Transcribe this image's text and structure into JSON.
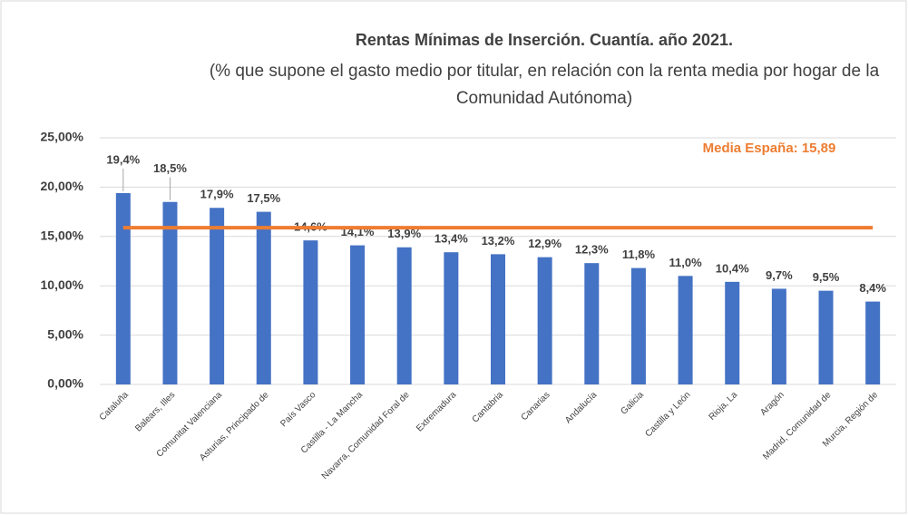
{
  "chart_data": {
    "type": "bar",
    "title": "Rentas Mínimas de Inserción. Cuantía. año 2021.",
    "subtitle": "(% que supone el gasto medio por titular, en relación con la renta media por hogar de la Comunidad Autónoma)",
    "categories": [
      "Cataluña",
      "Balears, Illes",
      "Comunitat Valenciana",
      "Asturias, Principado de",
      "País Vasco",
      "Castilla - La Mancha",
      "Navarra, Comunidad Foral de",
      "Extremadura",
      "Cantabria",
      "Canarias",
      "Andalucía",
      "Galicia",
      "Castilla y León",
      "Rioja, La",
      "Aragón",
      "Madrid, Comunidad de",
      "Murcia, Región de"
    ],
    "values": [
      19.4,
      18.5,
      17.9,
      17.5,
      14.6,
      14.1,
      13.9,
      13.4,
      13.2,
      12.9,
      12.3,
      11.8,
      11.0,
      10.4,
      9.7,
      9.5,
      8.4
    ],
    "value_labels": [
      "19,4%",
      "18,5%",
      "17,9%",
      "17,5%",
      "14,6%",
      "14,1%",
      "13,9%",
      "13,4%",
      "13,2%",
      "12,9%",
      "12,3%",
      "11,8%",
      "11,0%",
      "10,4%",
      "9,7%",
      "9,5%",
      "8,4%"
    ],
    "color": "#4472c4",
    "ylim": [
      0,
      25
    ],
    "yticks": [
      {
        "value": 0,
        "label": "0,00%"
      },
      {
        "value": 5,
        "label": "5,00%"
      },
      {
        "value": 10,
        "label": "10,00%"
      },
      {
        "value": 15,
        "label": "15,00%"
      },
      {
        "value": 20,
        "label": "20,00%"
      },
      {
        "value": 25,
        "label": "25,00%"
      }
    ],
    "grid": true,
    "reference_line": {
      "value": 15.89,
      "label": "Media España: 15,89",
      "color": "#ed7d31"
    }
  }
}
